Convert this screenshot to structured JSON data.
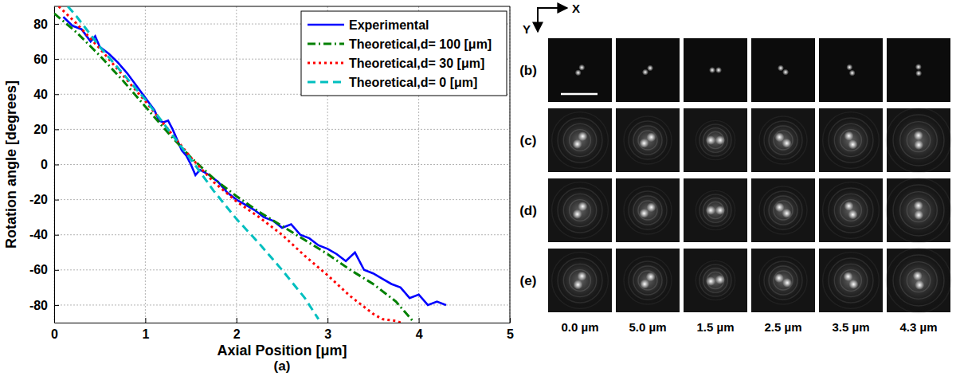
{
  "chart_data": {
    "type": "line",
    "title": "(a)",
    "x_label": "Axial Position [μm]",
    "y_label": "Rotation angle [degrees]",
    "xlim": [
      0,
      5
    ],
    "xticks": [
      0,
      1,
      2,
      3,
      4,
      5
    ],
    "ylim": [
      -90,
      90
    ],
    "yticks": [
      -80,
      -60,
      -40,
      -20,
      0,
      20,
      40,
      60,
      80
    ],
    "grid": true,
    "legend": "upper right",
    "series": [
      {
        "name": "Experimental",
        "color": "#0000ff",
        "line_style": "solid",
        "x": [
          0.1,
          0.2,
          0.3,
          0.4,
          0.45,
          0.5,
          0.6,
          0.7,
          0.8,
          0.9,
          1.0,
          1.1,
          1.15,
          1.2,
          1.25,
          1.3,
          1.35,
          1.4,
          1.45,
          1.5,
          1.55,
          1.6,
          1.7,
          1.8,
          1.9,
          2.0,
          2.1,
          2.2,
          2.3,
          2.4,
          2.5,
          2.6,
          2.7,
          2.8,
          2.9,
          3.0,
          3.1,
          3.2,
          3.3,
          3.4,
          3.5,
          3.6,
          3.7,
          3.8,
          3.9,
          4.0,
          4.1,
          4.2,
          4.3
        ],
        "values": [
          84,
          79,
          77,
          70,
          73,
          67,
          63,
          58,
          52,
          45,
          38,
          31,
          25,
          24,
          25,
          20,
          14,
          8,
          5,
          0,
          -6,
          -3,
          -6,
          -10,
          -16,
          -20,
          -23,
          -26,
          -30,
          -32,
          -36,
          -34,
          -40,
          -42,
          -46,
          -48,
          -51,
          -55,
          -50,
          -60,
          -62,
          -65,
          -68,
          -70,
          -76,
          -74,
          -80,
          -78,
          -80
        ]
      },
      {
        "name": "Theoretical,d= 100 [μm]",
        "color": "#008000",
        "line_style": "dash-dot",
        "x": [
          0,
          0.25,
          0.5,
          0.75,
          1.0,
          1.25,
          1.5,
          1.75,
          2.0,
          2.25,
          2.5,
          2.75,
          3.0,
          3.25,
          3.5,
          3.75,
          3.95
        ],
        "values": [
          86,
          75,
          62,
          48,
          33,
          18,
          4,
          -8,
          -18,
          -27,
          -35,
          -43,
          -51,
          -60,
          -68,
          -78,
          -90
        ]
      },
      {
        "name": "Theoretical,d= 30 [μm]",
        "color": "#ff0000",
        "line_style": "dotted",
        "x": [
          0.05,
          0.25,
          0.5,
          0.75,
          1.0,
          1.25,
          1.5,
          1.75,
          2.0,
          2.25,
          2.5,
          2.75,
          3.0,
          3.25,
          3.5,
          3.6,
          3.75,
          3.8
        ],
        "values": [
          90,
          80,
          66,
          51,
          36,
          20,
          4,
          -10,
          -21,
          -30,
          -40,
          -52,
          -63,
          -75,
          -85,
          -88,
          -89,
          -90
        ]
      },
      {
        "name": "Theoretical,d= 0 [μm]",
        "color": "#00bfbf",
        "line_style": "dashed",
        "x": [
          0.15,
          0.25,
          0.5,
          0.75,
          1.0,
          1.25,
          1.5,
          1.75,
          2.0,
          2.25,
          2.5,
          2.75,
          2.9
        ],
        "values": [
          90,
          84,
          67,
          52,
          37,
          20,
          3,
          -15,
          -31,
          -45,
          -60,
          -76,
          -88
        ]
      }
    ]
  },
  "image_panels": {
    "axes": [
      "X",
      "Y"
    ],
    "rows": [
      "(b)",
      "(c)",
      "(d)",
      "(e)"
    ],
    "columns": [
      "0.0 µm",
      "5.0 µm",
      "1.5 µm",
      "2.5 µm",
      "3.5 µm",
      "4.3 µm"
    ]
  }
}
